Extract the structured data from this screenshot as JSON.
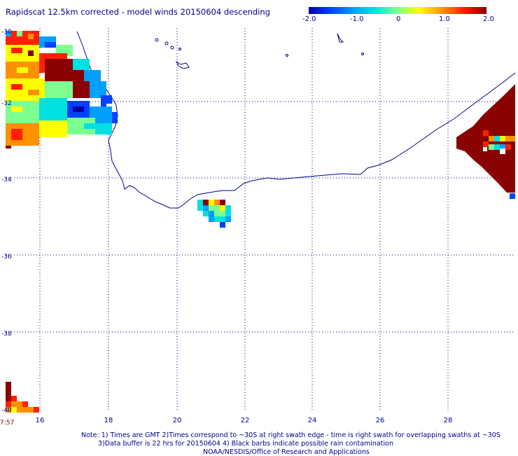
{
  "title": "Rapidscat 12.5km corrected - model winds 20150604 descending",
  "colorbar": {
    "labels": [
      "-2.0",
      "-1.0",
      "0",
      "1.0",
      "2.0"
    ],
    "min": -2.0,
    "max": 2.0,
    "colors": [
      "#0000aa",
      "#0040ff",
      "#00a0ff",
      "#00e0e0",
      "#7dff90",
      "#ffff00",
      "#ff9000",
      "#ff2000",
      "#8b0000"
    ]
  },
  "axes": {
    "lon_labels": [
      "16",
      "18",
      "20",
      "22",
      "24",
      "26",
      "28"
    ],
    "lat_labels": [
      "-30",
      "-32",
      "-34",
      "-36",
      "-38",
      "-40"
    ],
    "lon_range": [
      15,
      30
    ],
    "lat_range": [
      -40,
      -30
    ]
  },
  "time_label": "7:57",
  "notes": {
    "line1": "Note: 1) Times are GMT 2)Times correspond to ~30S at right swath edge - time is right swath for overlapping swaths at ~30S",
    "line2": "3)Data buffer is 22 hrs for 20150604 4) Black barbs indicate possible rain contamination",
    "line3": "NOAA/NESDIS/Office of Research and Applications"
  },
  "colors": {
    "text": "#00008b",
    "grid": "#00008b",
    "coast": "#00008b",
    "time": "#8b0000"
  }
}
